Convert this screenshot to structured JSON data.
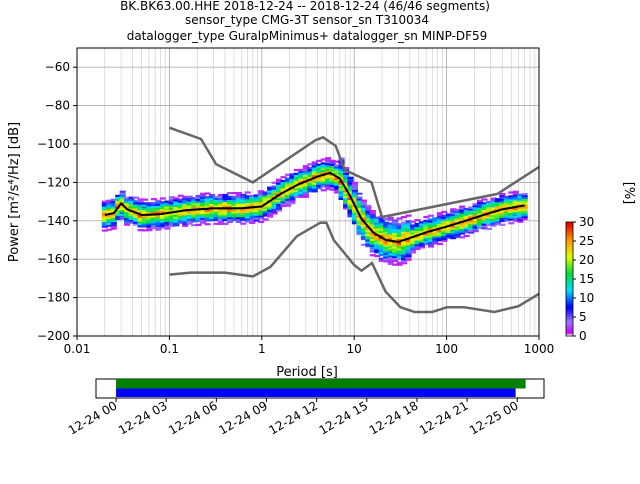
{
  "title_lines": [
    "BK.BK63.00.HHE   2018-12-24 -- 2018-12-24  (46/46 segments)",
    "sensor_type CMG-3T sensor_sn T310034",
    "datalogger_type GuralpMinimus+ datalogger_sn MINP-DF59"
  ],
  "colorbar": {
    "label": "[%]",
    "ticks": [
      "0",
      "5",
      "10",
      "15",
      "20",
      "25",
      "30"
    ],
    "range": [
      0,
      30
    ]
  },
  "timeline": {
    "ticks": [
      "12-24 00",
      "12-24 03",
      "12-24 06",
      "12-24 09",
      "12-24 12",
      "12-24 15",
      "12-24 18",
      "12-24 21",
      "12-25 00"
    ],
    "bars": [
      {
        "name": "data coverage",
        "start_hour": 0,
        "end_hour": 24.5,
        "color": "#008000"
      },
      {
        "name": "ppsd coverage",
        "start_hour": 0,
        "end_hour": 23.9,
        "color": "#0000ff"
      }
    ],
    "range_hours": [
      -1.2,
      25.6
    ]
  },
  "chart_data": {
    "type": "line",
    "xlabel": "Period [s]",
    "ylabel": "Power [m²/s⁴/Hz] [dB]",
    "xscale": "log",
    "xlim": [
      0.01,
      1000
    ],
    "ylim": [
      -200,
      -50
    ],
    "x_ticks": [
      "0.01",
      "0.1",
      "1",
      "10",
      "100",
      "1000"
    ],
    "y_ticks": [
      "−200",
      "−180",
      "−160",
      "−140",
      "−120",
      "−100",
      "−80",
      "−60"
    ],
    "grid": true,
    "series": [
      {
        "role": "NHNM",
        "color": "#666666",
        "x": [
          0.1,
          0.22,
          0.32,
          0.8,
          3.8,
          4.6,
          6.3,
          7.9,
          15.4,
          20,
          354.8,
          1000
        ],
        "y": [
          -91.5,
          -97.4,
          -110.5,
          -120,
          -98,
          -96.5,
          -101,
          -113.5,
          -120,
          -138,
          -126,
          -112
        ]
      },
      {
        "role": "NLNM",
        "color": "#666666",
        "x": [
          0.1,
          0.17,
          0.4,
          0.8,
          1.24,
          2.4,
          4.3,
          5,
          6,
          10,
          12,
          15.6,
          21.9,
          31.6,
          45,
          70,
          101,
          154,
          328,
          600,
          1000
        ],
        "y": [
          -168,
          -167,
          -167,
          -169,
          -164,
          -148,
          -141,
          -141,
          -150,
          -163,
          -166,
          -162,
          -177,
          -185,
          -187.5,
          -187.5,
          -185,
          -185,
          -187.5,
          -184.5,
          -178
        ]
      },
      {
        "role": "mean",
        "color": "#000000",
        "x": [
          0.02,
          0.025,
          0.03,
          0.035,
          0.05,
          0.08,
          0.15,
          0.3,
          0.6,
          1.0,
          1.6,
          2.5,
          4.0,
          5.5,
          7.0,
          9.0,
          12,
          16,
          22,
          30,
          40,
          60,
          100,
          160,
          250,
          400,
          700
        ],
        "y": [
          -137,
          -136,
          -131,
          -134,
          -137,
          -136.5,
          -134.5,
          -133.5,
          -133.5,
          -132.5,
          -126,
          -121,
          -117,
          -115,
          -118,
          -127,
          -139,
          -146,
          -150,
          -151,
          -149,
          -146,
          -143,
          -140,
          -137,
          -134,
          -132
        ]
      }
    ],
    "density": {
      "description": "probability density of PSD values, colour scale 0–30 %",
      "band_x": [
        0.02,
        0.025,
        0.03,
        0.035,
        0.05,
        0.08,
        0.15,
        0.3,
        0.6,
        1.0,
        1.6,
        2.5,
        4.0,
        5.5,
        7.0,
        9.0,
        12,
        16,
        22,
        30,
        40,
        60,
        100,
        160,
        250,
        400,
        700
      ],
      "band_half_width_db": 5
    }
  }
}
